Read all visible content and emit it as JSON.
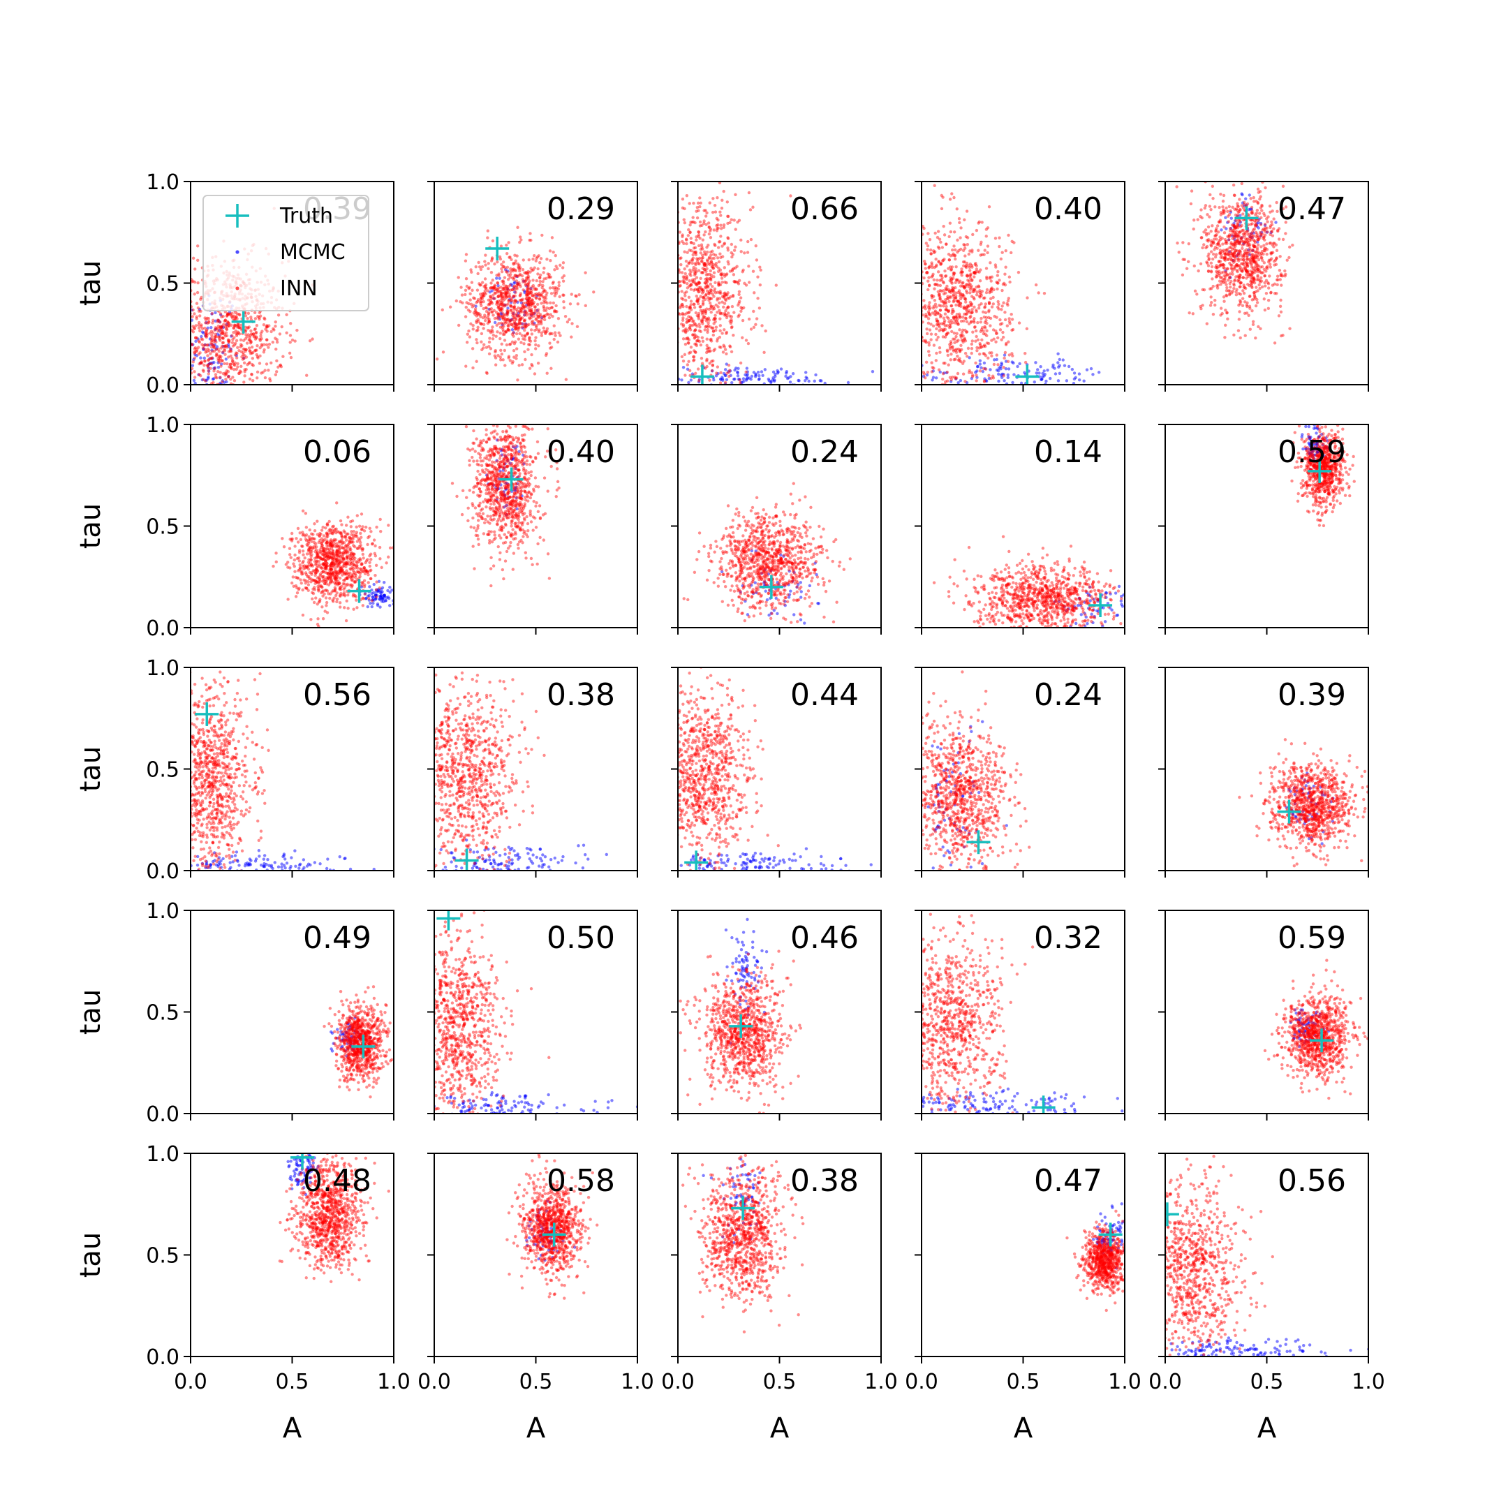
{
  "chart_data": {
    "type": "scatter",
    "grid": false,
    "rows": 5,
    "cols": 5,
    "xlabel": "A",
    "ylabel": "tau",
    "xlim": [
      0,
      1
    ],
    "ylim": [
      0,
      1
    ],
    "xticks": [
      "0.0",
      "0.5",
      "1.0"
    ],
    "yticks": [
      "0.0",
      "0.5",
      "1.0"
    ],
    "legend": {
      "placement": "upper-left of first panel",
      "entries": [
        {
          "name": "Truth",
          "marker": "plus",
          "color": "#17bebe"
        },
        {
          "name": "MCMC",
          "marker": "dot",
          "color": "#0000ff"
        },
        {
          "name": "INN",
          "marker": "dot",
          "color": "#ff0000"
        }
      ]
    },
    "panels": [
      {
        "label": "0.39",
        "truth": [
          0.26,
          0.31
        ],
        "inn": {
          "mx": 0.18,
          "my": 0.25,
          "sx": 0.14,
          "sy": 0.18,
          "n": 900
        },
        "mcmc": {
          "mx": 0.1,
          "my": 0.1,
          "sx": 0.07,
          "sy": 0.2,
          "n": 140
        }
      },
      {
        "label": "0.29",
        "truth": [
          0.31,
          0.67
        ],
        "inn": {
          "mx": 0.4,
          "my": 0.4,
          "sx": 0.12,
          "sy": 0.13,
          "n": 900
        },
        "mcmc": {
          "mx": 0.4,
          "my": 0.4,
          "sx": 0.08,
          "sy": 0.08,
          "n": 60
        }
      },
      {
        "label": "0.66",
        "truth": [
          0.12,
          0.04
        ],
        "inn": {
          "mx": 0.12,
          "my": 0.45,
          "sx": 0.12,
          "sy": 0.22,
          "n": 900
        },
        "mcmc": {
          "mx": 0.35,
          "my": 0.03,
          "sx": 0.25,
          "sy": 0.03,
          "n": 140
        }
      },
      {
        "label": "0.40",
        "truth": [
          0.52,
          0.04
        ],
        "inn": {
          "mx": 0.18,
          "my": 0.38,
          "sx": 0.13,
          "sy": 0.2,
          "n": 900
        },
        "mcmc": {
          "mx": 0.45,
          "my": 0.05,
          "sx": 0.25,
          "sy": 0.04,
          "n": 140
        }
      },
      {
        "label": "0.47",
        "truth": [
          0.4,
          0.82
        ],
        "inn": {
          "mx": 0.38,
          "my": 0.65,
          "sx": 0.1,
          "sy": 0.15,
          "n": 900
        },
        "mcmc": {
          "mx": 0.4,
          "my": 0.75,
          "sx": 0.06,
          "sy": 0.1,
          "n": 60
        }
      },
      {
        "label": "0.06",
        "truth": [
          0.83,
          0.18
        ],
        "inn": {
          "mx": 0.7,
          "my": 0.32,
          "sx": 0.1,
          "sy": 0.1,
          "n": 900
        },
        "mcmc": {
          "mx": 0.93,
          "my": 0.16,
          "sx": 0.04,
          "sy": 0.03,
          "n": 80
        }
      },
      {
        "label": "0.40",
        "truth": [
          0.38,
          0.73
        ],
        "inn": {
          "mx": 0.35,
          "my": 0.7,
          "sx": 0.08,
          "sy": 0.16,
          "n": 900
        },
        "mcmc": {
          "mx": 0.36,
          "my": 0.75,
          "sx": 0.05,
          "sy": 0.1,
          "n": 60
        }
      },
      {
        "label": "0.24",
        "truth": [
          0.46,
          0.2
        ],
        "inn": {
          "mx": 0.45,
          "my": 0.33,
          "sx": 0.13,
          "sy": 0.12,
          "n": 900
        },
        "mcmc": {
          "mx": 0.5,
          "my": 0.2,
          "sx": 0.1,
          "sy": 0.08,
          "n": 60
        }
      },
      {
        "label": "0.14",
        "truth": [
          0.88,
          0.11
        ],
        "inn": {
          "mx": 0.6,
          "my": 0.14,
          "sx": 0.17,
          "sy": 0.08,
          "n": 900
        },
        "mcmc": {
          "mx": 0.85,
          "my": 0.1,
          "sx": 0.1,
          "sy": 0.05,
          "n": 60
        }
      },
      {
        "label": "0.59",
        "truth": [
          0.76,
          0.77
        ],
        "inn": {
          "mx": 0.78,
          "my": 0.78,
          "sx": 0.05,
          "sy": 0.09,
          "n": 700
        },
        "mcmc": {
          "mx": 0.74,
          "my": 0.9,
          "sx": 0.03,
          "sy": 0.06,
          "n": 80
        }
      },
      {
        "label": "0.56",
        "truth": [
          0.08,
          0.77
        ],
        "inn": {
          "mx": 0.1,
          "my": 0.45,
          "sx": 0.1,
          "sy": 0.22,
          "n": 900
        },
        "mcmc": {
          "mx": 0.3,
          "my": 0.03,
          "sx": 0.25,
          "sy": 0.03,
          "n": 140
        }
      },
      {
        "label": "0.38",
        "truth": [
          0.16,
          0.05
        ],
        "inn": {
          "mx": 0.15,
          "my": 0.48,
          "sx": 0.13,
          "sy": 0.22,
          "n": 900
        },
        "mcmc": {
          "mx": 0.35,
          "my": 0.04,
          "sx": 0.25,
          "sy": 0.04,
          "n": 140
        }
      },
      {
        "label": "0.44",
        "truth": [
          0.09,
          0.04
        ],
        "inn": {
          "mx": 0.12,
          "my": 0.45,
          "sx": 0.12,
          "sy": 0.22,
          "n": 900
        },
        "mcmc": {
          "mx": 0.35,
          "my": 0.03,
          "sx": 0.25,
          "sy": 0.03,
          "n": 140
        }
      },
      {
        "label": "0.24",
        "truth": [
          0.28,
          0.14
        ],
        "inn": {
          "mx": 0.2,
          "my": 0.37,
          "sx": 0.12,
          "sy": 0.18,
          "n": 900
        },
        "mcmc": {
          "mx": 0.15,
          "my": 0.3,
          "sx": 0.08,
          "sy": 0.25,
          "n": 80
        }
      },
      {
        "label": "0.39",
        "truth": [
          0.61,
          0.29
        ],
        "inn": {
          "mx": 0.72,
          "my": 0.32,
          "sx": 0.1,
          "sy": 0.1,
          "n": 900
        },
        "mcmc": {
          "mx": 0.7,
          "my": 0.32,
          "sx": 0.07,
          "sy": 0.07,
          "n": 60
        }
      },
      {
        "label": "0.49",
        "truth": [
          0.85,
          0.33
        ],
        "inn": {
          "mx": 0.84,
          "my": 0.35,
          "sx": 0.06,
          "sy": 0.09,
          "n": 800
        },
        "mcmc": {
          "mx": 0.78,
          "my": 0.38,
          "sx": 0.04,
          "sy": 0.04,
          "n": 60
        }
      },
      {
        "label": "0.50",
        "truth": [
          0.07,
          0.96
        ],
        "inn": {
          "mx": 0.1,
          "my": 0.42,
          "sx": 0.11,
          "sy": 0.23,
          "n": 900
        },
        "mcmc": {
          "mx": 0.3,
          "my": 0.03,
          "sx": 0.25,
          "sy": 0.03,
          "n": 140
        }
      },
      {
        "label": "0.46",
        "truth": [
          0.31,
          0.43
        ],
        "inn": {
          "mx": 0.32,
          "my": 0.4,
          "sx": 0.1,
          "sy": 0.14,
          "n": 900
        },
        "mcmc": {
          "mx": 0.32,
          "my": 0.7,
          "sx": 0.05,
          "sy": 0.12,
          "n": 80
        }
      },
      {
        "label": "0.32",
        "truth": [
          0.6,
          0.03
        ],
        "inn": {
          "mx": 0.12,
          "my": 0.42,
          "sx": 0.13,
          "sy": 0.22,
          "n": 900
        },
        "mcmc": {
          "mx": 0.4,
          "my": 0.04,
          "sx": 0.25,
          "sy": 0.04,
          "n": 140
        }
      },
      {
        "label": "0.59",
        "truth": [
          0.77,
          0.36
        ],
        "inn": {
          "mx": 0.75,
          "my": 0.38,
          "sx": 0.08,
          "sy": 0.1,
          "n": 900
        },
        "mcmc": {
          "mx": 0.68,
          "my": 0.42,
          "sx": 0.05,
          "sy": 0.05,
          "n": 60
        }
      },
      {
        "label": "0.48",
        "truth": [
          0.55,
          0.98
        ],
        "inn": {
          "mx": 0.68,
          "my": 0.7,
          "sx": 0.08,
          "sy": 0.13,
          "n": 900
        },
        "mcmc": {
          "mx": 0.55,
          "my": 0.92,
          "sx": 0.04,
          "sy": 0.05,
          "n": 80
        }
      },
      {
        "label": "0.58",
        "truth": [
          0.59,
          0.6
        ],
        "inn": {
          "mx": 0.58,
          "my": 0.63,
          "sx": 0.07,
          "sy": 0.11,
          "n": 900
        },
        "mcmc": {
          "mx": 0.55,
          "my": 0.6,
          "sx": 0.05,
          "sy": 0.06,
          "n": 60
        }
      },
      {
        "label": "0.38",
        "truth": [
          0.32,
          0.73
        ],
        "inn": {
          "mx": 0.32,
          "my": 0.6,
          "sx": 0.1,
          "sy": 0.16,
          "n": 900
        },
        "mcmc": {
          "mx": 0.32,
          "my": 0.8,
          "sx": 0.05,
          "sy": 0.08,
          "n": 60
        }
      },
      {
        "label": "0.47",
        "truth": [
          0.93,
          0.6
        ],
        "inn": {
          "mx": 0.9,
          "my": 0.47,
          "sx": 0.05,
          "sy": 0.07,
          "n": 700
        },
        "mcmc": {
          "mx": 0.92,
          "my": 0.6,
          "sx": 0.04,
          "sy": 0.06,
          "n": 80
        }
      },
      {
        "label": "0.56",
        "truth": [
          0.01,
          0.7
        ],
        "inn": {
          "mx": 0.12,
          "my": 0.42,
          "sx": 0.12,
          "sy": 0.22,
          "n": 900
        },
        "mcmc": {
          "mx": 0.35,
          "my": 0.03,
          "sx": 0.25,
          "sy": 0.03,
          "n": 140
        }
      }
    ]
  }
}
